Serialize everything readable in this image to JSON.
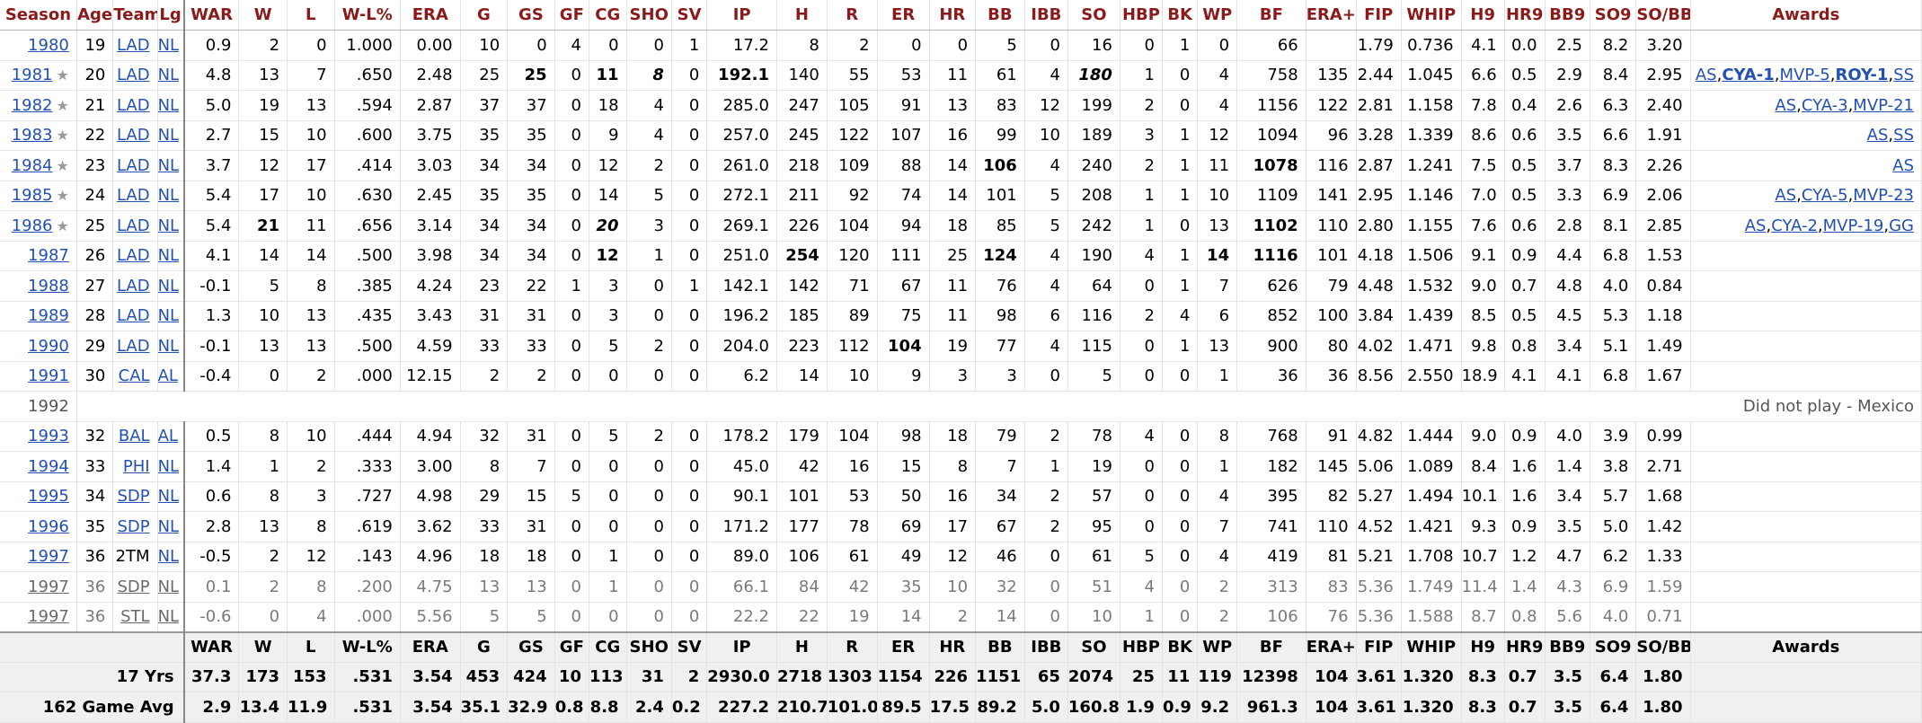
{
  "columns": [
    "Season",
    "Age",
    "Team",
    "Lg",
    "WAR",
    "W",
    "L",
    "W-L%",
    "ERA",
    "G",
    "GS",
    "GF",
    "CG",
    "SHO",
    "SV",
    "IP",
    "H",
    "R",
    "ER",
    "HR",
    "BB",
    "IBB",
    "SO",
    "HBP",
    "BK",
    "WP",
    "BF",
    "ERA+",
    "FIP",
    "WHIP",
    "H9",
    "HR9",
    "BB9",
    "SO9",
    "SO/BB",
    "Awards"
  ],
  "rows": [
    {
      "season": "1980",
      "star": false,
      "age": "19",
      "team": "LAD",
      "lg": "NL",
      "war": "0.9",
      "w": "2",
      "l": "0",
      "wlp": "1.000",
      "era": "0.00",
      "g": "10",
      "gs": "0",
      "gf": "4",
      "cg": "0",
      "sho": "0",
      "sv": "1",
      "ip": "17.2",
      "h": "8",
      "r": "2",
      "er": "0",
      "hr": "0",
      "bb": "5",
      "ibb": "0",
      "so": "16",
      "hbp": "0",
      "bk": "1",
      "wp": "0",
      "bf": "66",
      "eraplus": "",
      "fip": "1.79",
      "whip": "0.736",
      "h9": "4.1",
      "hr9": "0.0",
      "bb9": "2.5",
      "so9": "8.2",
      "sobb": "3.20",
      "awards": []
    },
    {
      "season": "1981",
      "star": true,
      "age": "20",
      "team": "LAD",
      "lg": "NL",
      "war": "4.8",
      "w": "13",
      "l": "7",
      "wlp": ".650",
      "era": "2.48",
      "g": "25",
      "gs": "25",
      "gf": "0",
      "cg": "11",
      "sho": "8",
      "sv": "0",
      "ip": "192.1",
      "h": "140",
      "r": "55",
      "er": "53",
      "hr": "11",
      "bb": "61",
      "ibb": "4",
      "so": "180",
      "hbp": "1",
      "bk": "0",
      "wp": "4",
      "bf": "758",
      "eraplus": "135",
      "fip": "2.44",
      "whip": "1.045",
      "h9": "6.6",
      "hr9": "0.5",
      "bb9": "2.9",
      "so9": "8.4",
      "sobb": "2.95",
      "awards": [
        {
          "t": "AS",
          "b": false
        },
        {
          "t": "CYA-1",
          "b": true
        },
        {
          "t": "MVP-5",
          "b": false
        },
        {
          "t": "ROY-1",
          "b": true
        },
        {
          "t": "SS",
          "b": false
        }
      ]
    },
    {
      "season": "1982",
      "star": true,
      "age": "21",
      "team": "LAD",
      "lg": "NL",
      "war": "5.0",
      "w": "19",
      "l": "13",
      "wlp": ".594",
      "era": "2.87",
      "g": "37",
      "gs": "37",
      "gf": "0",
      "cg": "18",
      "sho": "4",
      "sv": "0",
      "ip": "285.0",
      "h": "247",
      "r": "105",
      "er": "91",
      "hr": "13",
      "bb": "83",
      "ibb": "12",
      "so": "199",
      "hbp": "2",
      "bk": "0",
      "wp": "4",
      "bf": "1156",
      "eraplus": "122",
      "fip": "2.81",
      "whip": "1.158",
      "h9": "7.8",
      "hr9": "0.4",
      "bb9": "2.6",
      "so9": "6.3",
      "sobb": "2.40",
      "awards": [
        {
          "t": "AS",
          "b": false
        },
        {
          "t": "CYA-3",
          "b": false
        },
        {
          "t": "MVP-21",
          "b": false
        }
      ]
    },
    {
      "season": "1983",
      "star": true,
      "age": "22",
      "team": "LAD",
      "lg": "NL",
      "war": "2.7",
      "w": "15",
      "l": "10",
      "wlp": ".600",
      "era": "3.75",
      "g": "35",
      "gs": "35",
      "gf": "0",
      "cg": "9",
      "sho": "4",
      "sv": "0",
      "ip": "257.0",
      "h": "245",
      "r": "122",
      "er": "107",
      "hr": "16",
      "bb": "99",
      "ibb": "10",
      "so": "189",
      "hbp": "3",
      "bk": "1",
      "wp": "12",
      "bf": "1094",
      "eraplus": "96",
      "fip": "3.28",
      "whip": "1.339",
      "h9": "8.6",
      "hr9": "0.6",
      "bb9": "3.5",
      "so9": "6.6",
      "sobb": "1.91",
      "awards": [
        {
          "t": "AS",
          "b": false
        },
        {
          "t": "SS",
          "b": false
        }
      ]
    },
    {
      "season": "1984",
      "star": true,
      "age": "23",
      "team": "LAD",
      "lg": "NL",
      "war": "3.7",
      "w": "12",
      "l": "17",
      "wlp": ".414",
      "era": "3.03",
      "g": "34",
      "gs": "34",
      "gf": "0",
      "cg": "12",
      "sho": "2",
      "sv": "0",
      "ip": "261.0",
      "h": "218",
      "r": "109",
      "er": "88",
      "hr": "14",
      "bb": "106",
      "ibb": "4",
      "so": "240",
      "hbp": "2",
      "bk": "1",
      "wp": "11",
      "bf": "1078",
      "eraplus": "116",
      "fip": "2.87",
      "whip": "1.241",
      "h9": "7.5",
      "hr9": "0.5",
      "bb9": "3.7",
      "so9": "8.3",
      "sobb": "2.26",
      "awards": [
        {
          "t": "AS",
          "b": false
        }
      ]
    },
    {
      "season": "1985",
      "star": true,
      "age": "24",
      "team": "LAD",
      "lg": "NL",
      "war": "5.4",
      "w": "17",
      "l": "10",
      "wlp": ".630",
      "era": "2.45",
      "g": "35",
      "gs": "35",
      "gf": "0",
      "cg": "14",
      "sho": "5",
      "sv": "0",
      "ip": "272.1",
      "h": "211",
      "r": "92",
      "er": "74",
      "hr": "14",
      "bb": "101",
      "ibb": "5",
      "so": "208",
      "hbp": "1",
      "bk": "1",
      "wp": "10",
      "bf": "1109",
      "eraplus": "141",
      "fip": "2.95",
      "whip": "1.146",
      "h9": "7.0",
      "hr9": "0.5",
      "bb9": "3.3",
      "so9": "6.9",
      "sobb": "2.06",
      "awards": [
        {
          "t": "AS",
          "b": false
        },
        {
          "t": "CYA-5",
          "b": false
        },
        {
          "t": "MVP-23",
          "b": false
        }
      ]
    },
    {
      "season": "1986",
      "star": true,
      "age": "25",
      "team": "LAD",
      "lg": "NL",
      "war": "5.4",
      "w": "21",
      "l": "11",
      "wlp": ".656",
      "era": "3.14",
      "g": "34",
      "gs": "34",
      "gf": "0",
      "cg": "20",
      "sho": "3",
      "sv": "0",
      "ip": "269.1",
      "h": "226",
      "r": "104",
      "er": "94",
      "hr": "18",
      "bb": "85",
      "ibb": "5",
      "so": "242",
      "hbp": "1",
      "bk": "0",
      "wp": "13",
      "bf": "1102",
      "eraplus": "110",
      "fip": "2.80",
      "whip": "1.155",
      "h9": "7.6",
      "hr9": "0.6",
      "bb9": "2.8",
      "so9": "8.1",
      "sobb": "2.85",
      "awards": [
        {
          "t": "AS",
          "b": false
        },
        {
          "t": "CYA-2",
          "b": false
        },
        {
          "t": "MVP-19",
          "b": false
        },
        {
          "t": "GG",
          "b": false
        }
      ]
    },
    {
      "season": "1987",
      "star": false,
      "age": "26",
      "team": "LAD",
      "lg": "NL",
      "war": "4.1",
      "w": "14",
      "l": "14",
      "wlp": ".500",
      "era": "3.98",
      "g": "34",
      "gs": "34",
      "gf": "0",
      "cg": "12",
      "sho": "1",
      "sv": "0",
      "ip": "251.0",
      "h": "254",
      "r": "120",
      "er": "111",
      "hr": "25",
      "bb": "124",
      "ibb": "4",
      "so": "190",
      "hbp": "4",
      "bk": "1",
      "wp": "14",
      "bf": "1116",
      "eraplus": "101",
      "fip": "4.18",
      "whip": "1.506",
      "h9": "9.1",
      "hr9": "0.9",
      "bb9": "4.4",
      "so9": "6.8",
      "sobb": "1.53",
      "awards": []
    },
    {
      "season": "1988",
      "star": false,
      "age": "27",
      "team": "LAD",
      "lg": "NL",
      "war": "-0.1",
      "w": "5",
      "l": "8",
      "wlp": ".385",
      "era": "4.24",
      "g": "23",
      "gs": "22",
      "gf": "1",
      "cg": "3",
      "sho": "0",
      "sv": "1",
      "ip": "142.1",
      "h": "142",
      "r": "71",
      "er": "67",
      "hr": "11",
      "bb": "76",
      "ibb": "4",
      "so": "64",
      "hbp": "0",
      "bk": "1",
      "wp": "7",
      "bf": "626",
      "eraplus": "79",
      "fip": "4.48",
      "whip": "1.532",
      "h9": "9.0",
      "hr9": "0.7",
      "bb9": "4.8",
      "so9": "4.0",
      "sobb": "0.84",
      "awards": []
    },
    {
      "season": "1989",
      "star": false,
      "age": "28",
      "team": "LAD",
      "lg": "NL",
      "war": "1.3",
      "w": "10",
      "l": "13",
      "wlp": ".435",
      "era": "3.43",
      "g": "31",
      "gs": "31",
      "gf": "0",
      "cg": "3",
      "sho": "0",
      "sv": "0",
      "ip": "196.2",
      "h": "185",
      "r": "89",
      "er": "75",
      "hr": "11",
      "bb": "98",
      "ibb": "6",
      "so": "116",
      "hbp": "2",
      "bk": "4",
      "wp": "6",
      "bf": "852",
      "eraplus": "100",
      "fip": "3.84",
      "whip": "1.439",
      "h9": "8.5",
      "hr9": "0.5",
      "bb9": "4.5",
      "so9": "5.3",
      "sobb": "1.18",
      "awards": []
    },
    {
      "season": "1990",
      "star": false,
      "age": "29",
      "team": "LAD",
      "lg": "NL",
      "war": "-0.1",
      "w": "13",
      "l": "13",
      "wlp": ".500",
      "era": "4.59",
      "g": "33",
      "gs": "33",
      "gf": "0",
      "cg": "5",
      "sho": "2",
      "sv": "0",
      "ip": "204.0",
      "h": "223",
      "r": "112",
      "er": "104",
      "hr": "19",
      "bb": "77",
      "ibb": "4",
      "so": "115",
      "hbp": "0",
      "bk": "1",
      "wp": "13",
      "bf": "900",
      "eraplus": "80",
      "fip": "4.02",
      "whip": "1.471",
      "h9": "9.8",
      "hr9": "0.8",
      "bb9": "3.4",
      "so9": "5.1",
      "sobb": "1.49",
      "awards": []
    },
    {
      "season": "1991",
      "star": false,
      "age": "30",
      "team": "CAL",
      "lg": "AL",
      "war": "-0.4",
      "w": "0",
      "l": "2",
      "wlp": ".000",
      "era": "12.15",
      "g": "2",
      "gs": "2",
      "gf": "0",
      "cg": "0",
      "sho": "0",
      "sv": "0",
      "ip": "6.2",
      "h": "14",
      "r": "10",
      "er": "9",
      "hr": "3",
      "bb": "3",
      "ibb": "0",
      "so": "5",
      "hbp": "0",
      "bk": "0",
      "wp": "1",
      "bf": "36",
      "eraplus": "36",
      "fip": "8.56",
      "whip": "2.550",
      "h9": "18.9",
      "hr9": "4.1",
      "bb9": "4.1",
      "so9": "6.8",
      "sobb": "1.67",
      "awards": []
    },
    {
      "season": "1993",
      "star": false,
      "age": "32",
      "team": "BAL",
      "lg": "AL",
      "war": "0.5",
      "w": "8",
      "l": "10",
      "wlp": ".444",
      "era": "4.94",
      "g": "32",
      "gs": "31",
      "gf": "0",
      "cg": "5",
      "sho": "2",
      "sv": "0",
      "ip": "178.2",
      "h": "179",
      "r": "104",
      "er": "98",
      "hr": "18",
      "bb": "79",
      "ibb": "2",
      "so": "78",
      "hbp": "4",
      "bk": "0",
      "wp": "8",
      "bf": "768",
      "eraplus": "91",
      "fip": "4.82",
      "whip": "1.444",
      "h9": "9.0",
      "hr9": "0.9",
      "bb9": "4.0",
      "so9": "3.9",
      "sobb": "0.99",
      "awards": []
    },
    {
      "season": "1994",
      "star": false,
      "age": "33",
      "team": "PHI",
      "lg": "NL",
      "war": "1.4",
      "w": "1",
      "l": "2",
      "wlp": ".333",
      "era": "3.00",
      "g": "8",
      "gs": "7",
      "gf": "0",
      "cg": "0",
      "sho": "0",
      "sv": "0",
      "ip": "45.0",
      "h": "42",
      "r": "16",
      "er": "15",
      "hr": "8",
      "bb": "7",
      "ibb": "1",
      "so": "19",
      "hbp": "0",
      "bk": "0",
      "wp": "1",
      "bf": "182",
      "eraplus": "145",
      "fip": "5.06",
      "whip": "1.089",
      "h9": "8.4",
      "hr9": "1.6",
      "bb9": "1.4",
      "so9": "3.8",
      "sobb": "2.71",
      "awards": []
    },
    {
      "season": "1995",
      "star": false,
      "age": "34",
      "team": "SDP",
      "lg": "NL",
      "war": "0.6",
      "w": "8",
      "l": "3",
      "wlp": ".727",
      "era": "4.98",
      "g": "29",
      "gs": "15",
      "gf": "5",
      "cg": "0",
      "sho": "0",
      "sv": "0",
      "ip": "90.1",
      "h": "101",
      "r": "53",
      "er": "50",
      "hr": "16",
      "bb": "34",
      "ibb": "2",
      "so": "57",
      "hbp": "0",
      "bk": "0",
      "wp": "4",
      "bf": "395",
      "eraplus": "82",
      "fip": "5.27",
      "whip": "1.494",
      "h9": "10.1",
      "hr9": "1.6",
      "bb9": "3.4",
      "so9": "5.7",
      "sobb": "1.68",
      "awards": []
    },
    {
      "season": "1996",
      "star": false,
      "age": "35",
      "team": "SDP",
      "lg": "NL",
      "war": "2.8",
      "w": "13",
      "l": "8",
      "wlp": ".619",
      "era": "3.62",
      "g": "33",
      "gs": "31",
      "gf": "0",
      "cg": "0",
      "sho": "0",
      "sv": "0",
      "ip": "171.2",
      "h": "177",
      "r": "78",
      "er": "69",
      "hr": "17",
      "bb": "67",
      "ibb": "2",
      "so": "95",
      "hbp": "0",
      "bk": "0",
      "wp": "7",
      "bf": "741",
      "eraplus": "110",
      "fip": "4.52",
      "whip": "1.421",
      "h9": "9.3",
      "hr9": "0.9",
      "bb9": "3.5",
      "so9": "5.0",
      "sobb": "1.42",
      "awards": []
    },
    {
      "season": "1997",
      "star": false,
      "age": "36",
      "team": "2TM",
      "lg": "NL",
      "war": "-0.5",
      "w": "2",
      "l": "12",
      "wlp": ".143",
      "era": "4.96",
      "g": "18",
      "gs": "18",
      "gf": "0",
      "cg": "1",
      "sho": "0",
      "sv": "0",
      "ip": "89.0",
      "h": "106",
      "r": "61",
      "er": "49",
      "hr": "12",
      "bb": "46",
      "ibb": "0",
      "so": "61",
      "hbp": "5",
      "bk": "0",
      "wp": "4",
      "bf": "419",
      "eraplus": "81",
      "fip": "5.21",
      "whip": "1.708",
      "h9": "10.7",
      "hr9": "1.2",
      "bb9": "4.7",
      "so9": "6.2",
      "sobb": "1.33",
      "awards": [],
      "team_plain": true
    },
    {
      "season": "1997",
      "star": false,
      "age": "36",
      "team": "SDP",
      "lg": "NL",
      "war": "0.1",
      "w": "2",
      "l": "8",
      "wlp": ".200",
      "era": "4.75",
      "g": "13",
      "gs": "13",
      "gf": "0",
      "cg": "1",
      "sho": "0",
      "sv": "0",
      "ip": "66.1",
      "h": "84",
      "r": "42",
      "er": "35",
      "hr": "10",
      "bb": "32",
      "ibb": "0",
      "so": "51",
      "hbp": "4",
      "bk": "0",
      "wp": "2",
      "bf": "313",
      "eraplus": "83",
      "fip": "5.36",
      "whip": "1.749",
      "h9": "11.4",
      "hr9": "1.4",
      "bb9": "4.3",
      "so9": "6.9",
      "sobb": "1.59",
      "awards": [],
      "partial": true
    },
    {
      "season": "1997",
      "star": false,
      "age": "36",
      "team": "STL",
      "lg": "NL",
      "war": "-0.6",
      "w": "0",
      "l": "4",
      "wlp": ".000",
      "era": "5.56",
      "g": "5",
      "gs": "5",
      "gf": "0",
      "cg": "0",
      "sho": "0",
      "sv": "0",
      "ip": "22.2",
      "h": "22",
      "r": "19",
      "er": "14",
      "hr": "2",
      "bb": "14",
      "ibb": "0",
      "so": "10",
      "hbp": "1",
      "bk": "0",
      "wp": "2",
      "bf": "106",
      "eraplus": "76",
      "fip": "5.36",
      "whip": "1.588",
      "h9": "8.7",
      "hr9": "0.8",
      "bb9": "5.6",
      "so9": "4.0",
      "sobb": "0.71",
      "awards": [],
      "partial": true
    }
  ],
  "note_row": {
    "after_season": "1991",
    "season": "1992",
    "text": "Did not play - Mexico"
  },
  "bold_cells": {
    "1981": [
      "gs",
      "cg",
      "ip"
    ],
    "1986": [
      "w",
      "bf"
    ],
    "1987": [
      "cg",
      "h",
      "bb",
      "wp",
      "bf"
    ],
    "1984": [
      "bb",
      "bf"
    ],
    "1990": [
      "er"
    ]
  },
  "italic_cells": {
    "1981": [
      "sho",
      "so"
    ],
    "1986": [
      "cg"
    ]
  },
  "footer": {
    "headers": [
      "WAR",
      "W",
      "L",
      "W-L%",
      "ERA",
      "G",
      "GS",
      "GF",
      "CG",
      "SHO",
      "SV",
      "IP",
      "H",
      "R",
      "ER",
      "HR",
      "BB",
      "IBB",
      "SO",
      "HBP",
      "BK",
      "WP",
      "BF",
      "ERA+",
      "FIP",
      "WHIP",
      "H9",
      "HR9",
      "BB9",
      "SO9",
      "SO/BB",
      "Awards"
    ],
    "totals_label": "17 Yrs",
    "totals": [
      "37.3",
      "173",
      "153",
      ".531",
      "3.54",
      "453",
      "424",
      "10",
      "113",
      "31",
      "2",
      "2930.0",
      "2718",
      "1303",
      "1154",
      "226",
      "1151",
      "65",
      "2074",
      "25",
      "11",
      "119",
      "12398",
      "104",
      "3.61",
      "1.320",
      "8.3",
      "0.7",
      "3.5",
      "6.4",
      "1.80",
      ""
    ],
    "avg_label": "162 Game Avg",
    "avg": [
      "2.9",
      "13.4",
      "11.9",
      ".531",
      "3.54",
      "35.1",
      "32.9",
      "0.8",
      "8.8",
      "2.4",
      "0.2",
      "227.2",
      "210.7",
      "101.0",
      "89.5",
      "17.5",
      "89.2",
      "5.0",
      "160.8",
      "1.9",
      "0.9",
      "9.2",
      "961.3",
      "104",
      "3.61",
      "1.320",
      "8.3",
      "0.7",
      "3.5",
      "6.4",
      "1.80",
      ""
    ]
  },
  "colors": {
    "header_text": "#8b1a1a",
    "link": "#2350b3",
    "footer_bg": "#f0f0f0"
  },
  "star_icon": "star-icon"
}
